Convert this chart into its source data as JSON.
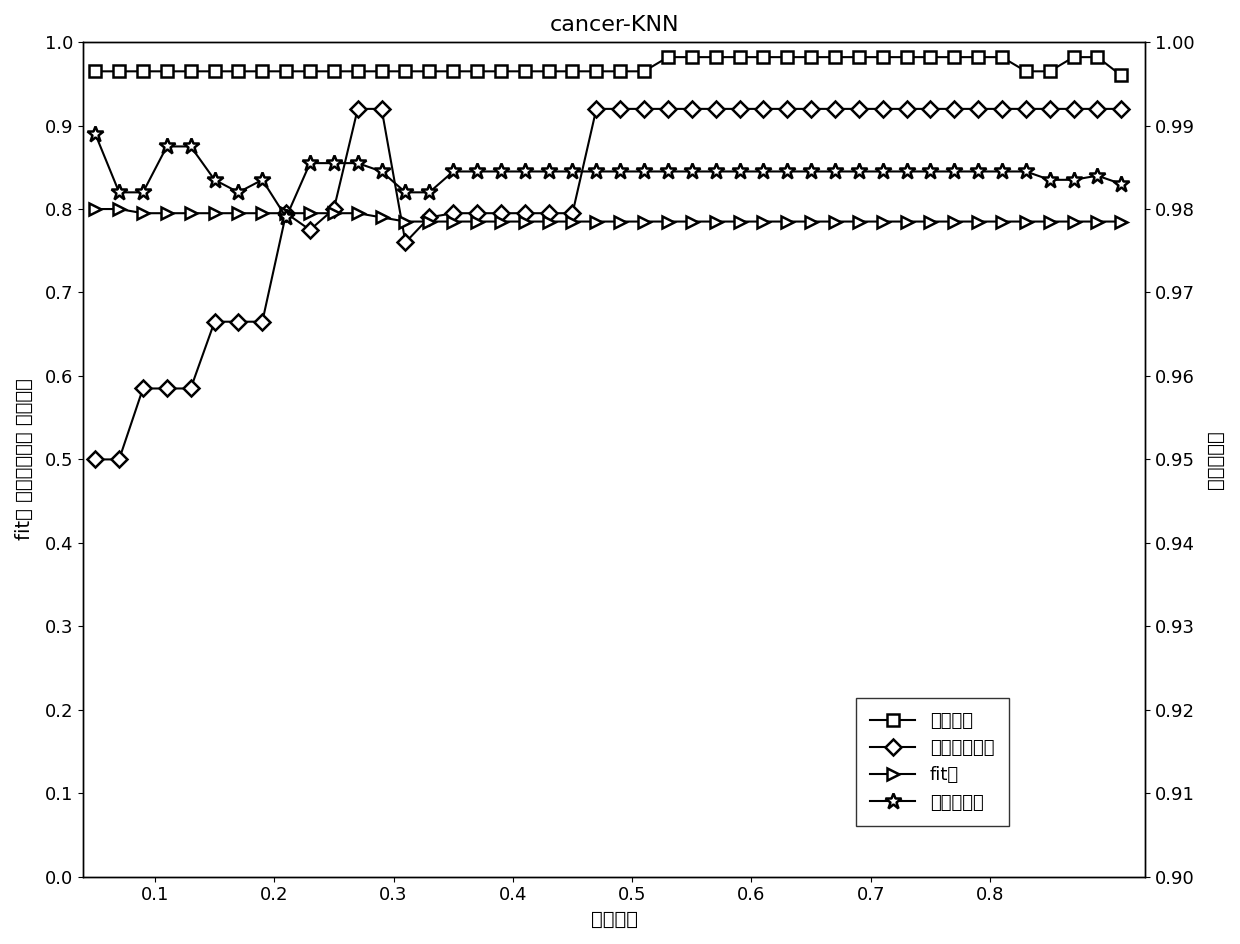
{
  "title": "cancer-KNN",
  "xlabel": "领域半径",
  "ylabel_left": "fit値 约简属性个数 分类精度",
  "ylabel_right": "平均相关度",
  "xlim": [
    0.04,
    0.93
  ],
  "ylim_left": [
    0,
    1.0
  ],
  "ylim_right": [
    0.9,
    1.0
  ],
  "x": [
    0.05,
    0.07,
    0.09,
    0.11,
    0.13,
    0.15,
    0.17,
    0.19,
    0.21,
    0.23,
    0.25,
    0.27,
    0.29,
    0.31,
    0.33,
    0.35,
    0.37,
    0.39,
    0.41,
    0.43,
    0.45,
    0.47,
    0.49,
    0.51,
    0.53,
    0.55,
    0.57,
    0.59,
    0.61,
    0.63,
    0.65,
    0.67,
    0.69,
    0.71,
    0.73,
    0.75,
    0.77,
    0.79,
    0.81,
    0.83,
    0.85,
    0.87,
    0.89,
    0.91
  ],
  "classification_accuracy": [
    0.965,
    0.965,
    0.965,
    0.965,
    0.965,
    0.965,
    0.965,
    0.965,
    0.965,
    0.965,
    0.965,
    0.965,
    0.965,
    0.965,
    0.965,
    0.965,
    0.965,
    0.965,
    0.965,
    0.965,
    0.965,
    0.965,
    0.965,
    0.965,
    0.982,
    0.982,
    0.982,
    0.982,
    0.982,
    0.982,
    0.982,
    0.982,
    0.982,
    0.982,
    0.982,
    0.982,
    0.982,
    0.982,
    0.982,
    0.965,
    0.965,
    0.982,
    0.982,
    0.96
  ],
  "reduced_features": [
    0.5,
    0.5,
    0.585,
    0.585,
    0.585,
    0.665,
    0.665,
    0.665,
    0.795,
    0.775,
    0.8,
    0.92,
    0.92,
    0.76,
    0.79,
    0.795,
    0.795,
    0.795,
    0.795,
    0.795,
    0.795,
    0.92,
    0.92,
    0.92,
    0.92,
    0.92,
    0.92,
    0.92,
    0.92,
    0.92,
    0.92,
    0.92,
    0.92,
    0.92,
    0.92,
    0.92,
    0.92,
    0.92,
    0.92,
    0.92,
    0.92,
    0.92,
    0.92,
    0.92
  ],
  "fit_value": [
    0.8,
    0.8,
    0.795,
    0.795,
    0.795,
    0.795,
    0.795,
    0.795,
    0.795,
    0.795,
    0.795,
    0.795,
    0.79,
    0.785,
    0.785,
    0.785,
    0.785,
    0.785,
    0.785,
    0.785,
    0.785,
    0.785,
    0.785,
    0.785,
    0.785,
    0.785,
    0.785,
    0.785,
    0.785,
    0.785,
    0.785,
    0.785,
    0.785,
    0.785,
    0.785,
    0.785,
    0.785,
    0.785,
    0.785,
    0.785,
    0.785,
    0.785,
    0.785,
    0.785
  ],
  "avg_correlation": [
    0.89,
    0.82,
    0.82,
    0.875,
    0.875,
    0.835,
    0.82,
    0.835,
    0.79,
    0.855,
    0.855,
    0.855,
    0.845,
    0.82,
    0.82,
    0.845,
    0.845,
    0.845,
    0.845,
    0.845,
    0.845,
    0.845,
    0.845,
    0.845,
    0.845,
    0.845,
    0.845,
    0.845,
    0.845,
    0.845,
    0.845,
    0.845,
    0.845,
    0.845,
    0.845,
    0.845,
    0.845,
    0.845,
    0.845,
    0.845,
    0.835,
    0.835,
    0.84,
    0.83
  ],
  "xticks": [
    0.1,
    0.2,
    0.3,
    0.4,
    0.5,
    0.6,
    0.7,
    0.8
  ],
  "yticks_left": [
    0,
    0.1,
    0.2,
    0.3,
    0.4,
    0.5,
    0.6,
    0.7,
    0.8,
    0.9,
    1.0
  ],
  "yticks_right": [
    0.9,
    0.91,
    0.92,
    0.93,
    0.94,
    0.95,
    0.96,
    0.97,
    0.98,
    0.99,
    1.0
  ],
  "legend_labels": [
    "分类精度",
    "约简属性个数",
    "fit値",
    "平均相关度"
  ],
  "line_color": "#000000",
  "background_color": "#ffffff",
  "fontsize_title": 16,
  "fontsize_labels": 14,
  "fontsize_ticks": 13,
  "fontsize_legend": 13
}
